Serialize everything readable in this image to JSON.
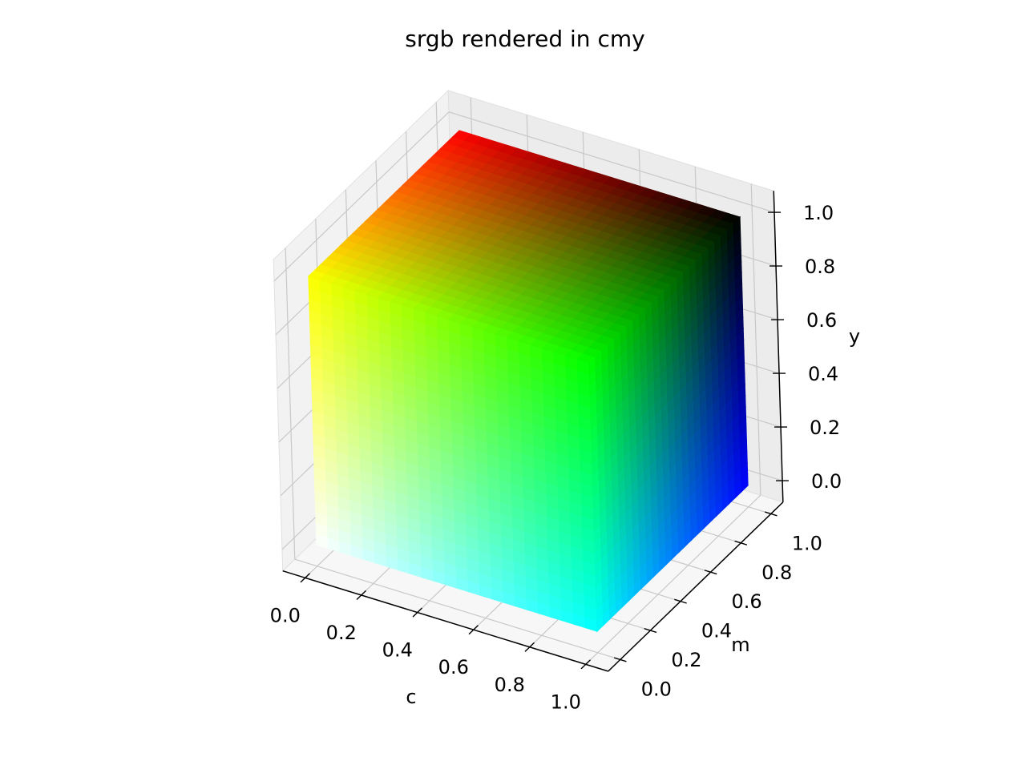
{
  "chart_data": {
    "type": "scatter",
    "title": "srgb rendered in cmy",
    "xlabel": "c",
    "ylabel": "m",
    "zlabel": "y",
    "xlim": [
      0,
      1
    ],
    "ylim": [
      0,
      1
    ],
    "zlim": [
      0,
      1
    ],
    "x_ticks": [
      "0.0",
      "0.2",
      "0.4",
      "0.6",
      "0.8",
      "1.0"
    ],
    "y_ticks": [
      "0.0",
      "0.2",
      "0.4",
      "0.6",
      "0.8",
      "1.0"
    ],
    "z_ticks": [
      "0.0",
      "0.2",
      "0.4",
      "0.6",
      "0.8",
      "1.0"
    ],
    "grid": true,
    "projection": "3d",
    "corner_colors": {
      "c0_m0_y0": "#ffffff",
      "c1_m0_y0": "#00ffff",
      "c0_m0_y1": "#ffff00",
      "c1_m0_y1": "#00ff00",
      "c1_m1_y0": "#0000ff",
      "c1_m1_y1": "#000000",
      "c0_m1_y1": "#ff0000",
      "c0_m1_y0": "#ff00ff"
    }
  }
}
